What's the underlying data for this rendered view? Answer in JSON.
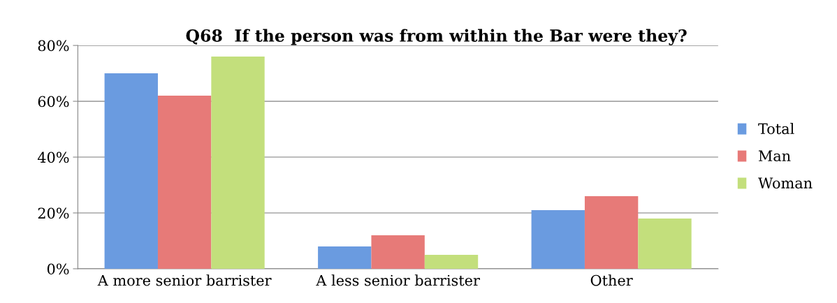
{
  "chart_data": {
    "type": "bar",
    "title": "Q68  If the person was from within the Bar were they?",
    "categories": [
      "A more senior barrister",
      "A less senior barrister",
      "Other"
    ],
    "series": [
      {
        "name": "Total",
        "color": "#6a9be0",
        "values": [
          70,
          8,
          21
        ]
      },
      {
        "name": "Man",
        "color": "#e77a78",
        "values": [
          62,
          12,
          26
        ]
      },
      {
        "name": "Woman",
        "color": "#c3df7c",
        "values": [
          76,
          5,
          18
        ]
      }
    ],
    "ylim": [
      0,
      80
    ],
    "yticks": [
      {
        "value": 0,
        "label": "0%"
      },
      {
        "value": 20,
        "label": "20%"
      },
      {
        "value": 40,
        "label": "40%"
      },
      {
        "value": 60,
        "label": "60%"
      },
      {
        "value": 80,
        "label": "80%"
      }
    ],
    "grid": "y",
    "legend": "right"
  }
}
